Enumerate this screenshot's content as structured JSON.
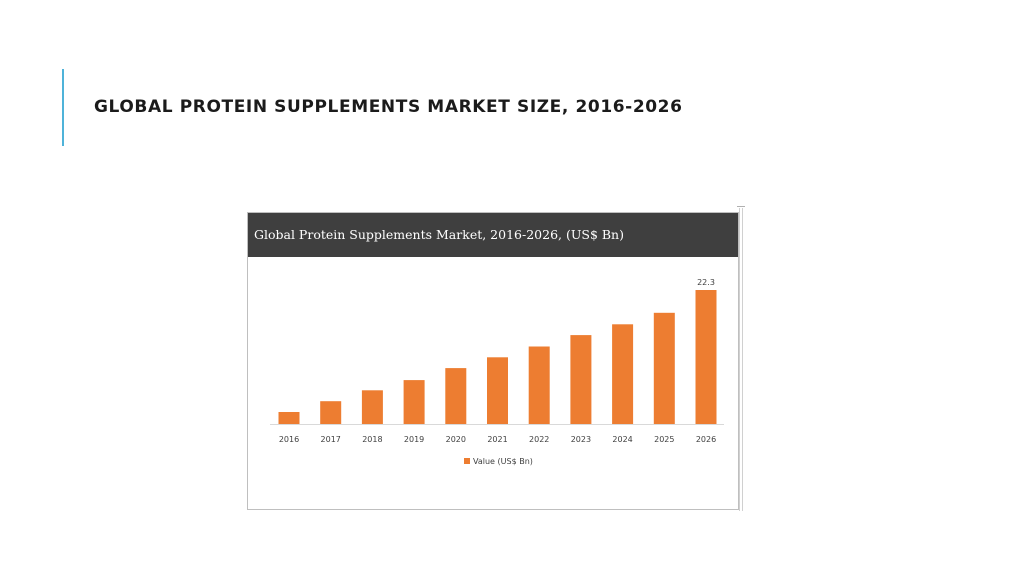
{
  "slide": {
    "title": "GLOBAL PROTEIN SUPPLEMENTS MARKET SIZE, 2016-2026"
  },
  "colors": {
    "accent": "#4fb3d9",
    "bar": "#ed7d31",
    "header_bg": "#3f3f3f"
  },
  "chart_data": {
    "type": "bar",
    "title": "Global Protein Supplements Market, 2016-2026, (US$ Bn)",
    "categories": [
      "2016",
      "2017",
      "2018",
      "2019",
      "2020",
      "2021",
      "2022",
      "2023",
      "2024",
      "2025",
      "2026"
    ],
    "series": [
      {
        "name": "Value (US$ Bn)",
        "values": [
          2.0,
          3.8,
          5.6,
          7.3,
          9.3,
          11.1,
          12.9,
          14.8,
          16.6,
          18.5,
          22.3
        ]
      }
    ],
    "data_labels": [
      {
        "category": "2026",
        "text": "22.3"
      }
    ],
    "ylim": [
      0,
      22.3
    ],
    "grid": false,
    "legend": "bottom"
  }
}
